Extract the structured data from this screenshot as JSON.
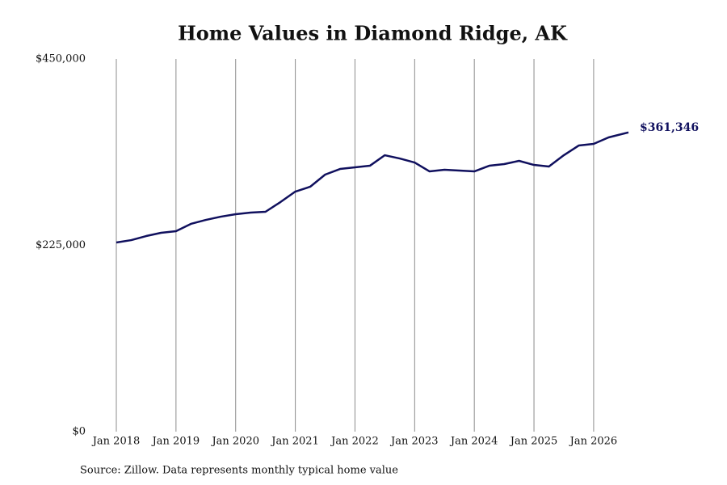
{
  "chart_data": {
    "type": "line",
    "title": "Home Values in Diamond Ridge, AK",
    "caption": "Source: Zillow. Data represents monthly typical home value",
    "x": [
      "2018-01",
      "2018-04",
      "2018-07",
      "2018-10",
      "2019-01",
      "2019-04",
      "2019-07",
      "2019-10",
      "2020-01",
      "2020-04",
      "2020-07",
      "2020-10",
      "2021-01",
      "2021-04",
      "2021-07",
      "2021-10",
      "2022-01",
      "2022-04",
      "2022-07",
      "2022-10",
      "2023-01",
      "2023-04",
      "2023-07",
      "2023-10",
      "2024-01",
      "2024-04",
      "2024-07",
      "2024-10",
      "2025-01",
      "2025-04",
      "2025-07",
      "2025-10",
      "2026-01",
      "2026-04",
      "2026-08"
    ],
    "series": [
      {
        "color": "#10105e",
        "values": [
          228400,
          231300,
          236200,
          240100,
          242100,
          250900,
          255700,
          259600,
          262600,
          264500,
          265500,
          277200,
          289900,
          295800,
          310400,
          317200,
          319200,
          321100,
          333800,
          329900,
          325000,
          314300,
          316300,
          315300,
          314300,
          321100,
          323100,
          327000,
          322100,
          320200,
          333800,
          345500,
          347500,
          355300,
          361346
        ],
        "value_labels": [
          null,
          null,
          null,
          null,
          null,
          null,
          null,
          null,
          null,
          null,
          null,
          null,
          null,
          null,
          null,
          null,
          null,
          null,
          null,
          null,
          null,
          null,
          null,
          null,
          null,
          null,
          null,
          null,
          null,
          null,
          null,
          null,
          null,
          null,
          "$361,346"
        ]
      }
    ],
    "xlim": [
      "2018-01",
      "2026-08"
    ],
    "xticks": [
      {
        "value": "2018-01",
        "label": "Jan 2018"
      },
      {
        "value": "2019-01",
        "label": "Jan 2019"
      },
      {
        "value": "2020-01",
        "label": "Jan 2020"
      },
      {
        "value": "2021-01",
        "label": "Jan 2021"
      },
      {
        "value": "2022-01",
        "label": "Jan 2022"
      },
      {
        "value": "2023-01",
        "label": "Jan 2023"
      },
      {
        "value": "2024-01",
        "label": "Jan 2024"
      },
      {
        "value": "2025-01",
        "label": "Jan 2025"
      },
      {
        "value": "2026-01",
        "label": "Jan 2026"
      }
    ],
    "ylim": [
      0,
      450000
    ],
    "yticks": [
      {
        "value": 0,
        "label": "$0"
      },
      {
        "value": 225000,
        "label": "$225,000"
      },
      {
        "value": 450000,
        "label": "$450,000"
      }
    ],
    "grid": "x"
  }
}
